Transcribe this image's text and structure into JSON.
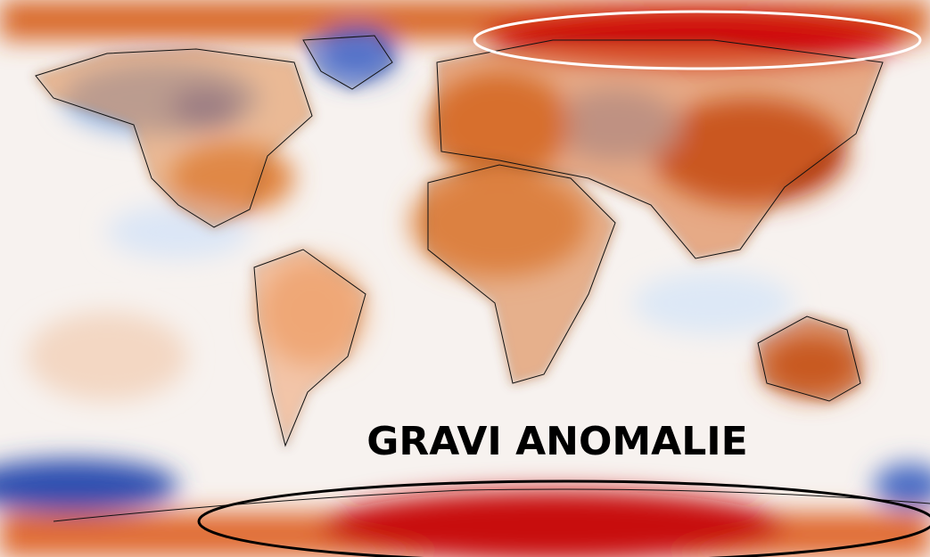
{
  "map": {
    "annotation": "GRAVI ANOMALIE"
  }
}
